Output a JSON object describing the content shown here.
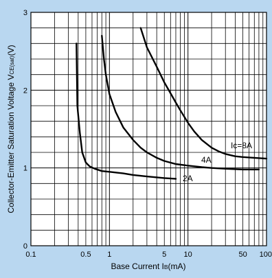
{
  "chart_data": {
    "type": "line",
    "title": "",
    "xlabel": "Base Current I",
    "xlabel_sub": "B",
    "xlabel_unit": "(mA)",
    "ylabel": "Collector-Emitter Saturation Voltage V",
    "ylabel_sub": "CE(sat)",
    "ylabel_unit": "(V)",
    "x_scale": "log",
    "xlim": [
      0.1,
      100
    ],
    "ylim": [
      0,
      3
    ],
    "x_ticks": [
      {
        "value": 0.1,
        "label": "0.1"
      },
      {
        "value": 0.5,
        "label": "0.5"
      },
      {
        "value": 1,
        "label": "1"
      },
      {
        "value": 5,
        "label": "5"
      },
      {
        "value": 10,
        "label": "10"
      },
      {
        "value": 50,
        "label": "50"
      },
      {
        "value": 100,
        "label": "100"
      }
    ],
    "y_ticks": [
      {
        "value": 0,
        "label": "0"
      },
      {
        "value": 1,
        "label": "1"
      },
      {
        "value": 2,
        "label": "2"
      },
      {
        "value": 3,
        "label": "3"
      }
    ],
    "y_grid_step": 0.2,
    "grid": true,
    "series": [
      {
        "name": "2A",
        "x": [
          0.38,
          0.39,
          0.42,
          0.45,
          0.5,
          0.56,
          0.65,
          0.8,
          1.0,
          1.5,
          2,
          3,
          5,
          7
        ],
        "y": [
          2.6,
          1.8,
          1.45,
          1.2,
          1.07,
          1.02,
          0.99,
          0.96,
          0.95,
          0.93,
          0.91,
          0.89,
          0.87,
          0.86
        ]
      },
      {
        "name": "4A",
        "x": [
          0.8,
          0.85,
          0.9,
          1.0,
          1.2,
          1.5,
          2,
          2.5,
          3,
          4,
          5,
          7,
          10,
          15,
          20,
          30,
          50,
          80
        ],
        "y": [
          2.7,
          2.4,
          2.2,
          1.95,
          1.72,
          1.52,
          1.36,
          1.26,
          1.2,
          1.13,
          1.09,
          1.05,
          1.03,
          1.01,
          1.0,
          0.99,
          0.98,
          0.98
        ]
      },
      {
        "name": "Ic=8A",
        "x": [
          2.5,
          3,
          4,
          5,
          6,
          7,
          8,
          10,
          12,
          15,
          20,
          25,
          30,
          40,
          50,
          70,
          100
        ],
        "y": [
          2.8,
          2.55,
          2.3,
          2.1,
          1.96,
          1.84,
          1.74,
          1.58,
          1.47,
          1.36,
          1.26,
          1.21,
          1.18,
          1.15,
          1.14,
          1.13,
          1.12
        ]
      }
    ],
    "annotations": [
      "2A",
      "4A",
      "Ic=8A"
    ]
  }
}
